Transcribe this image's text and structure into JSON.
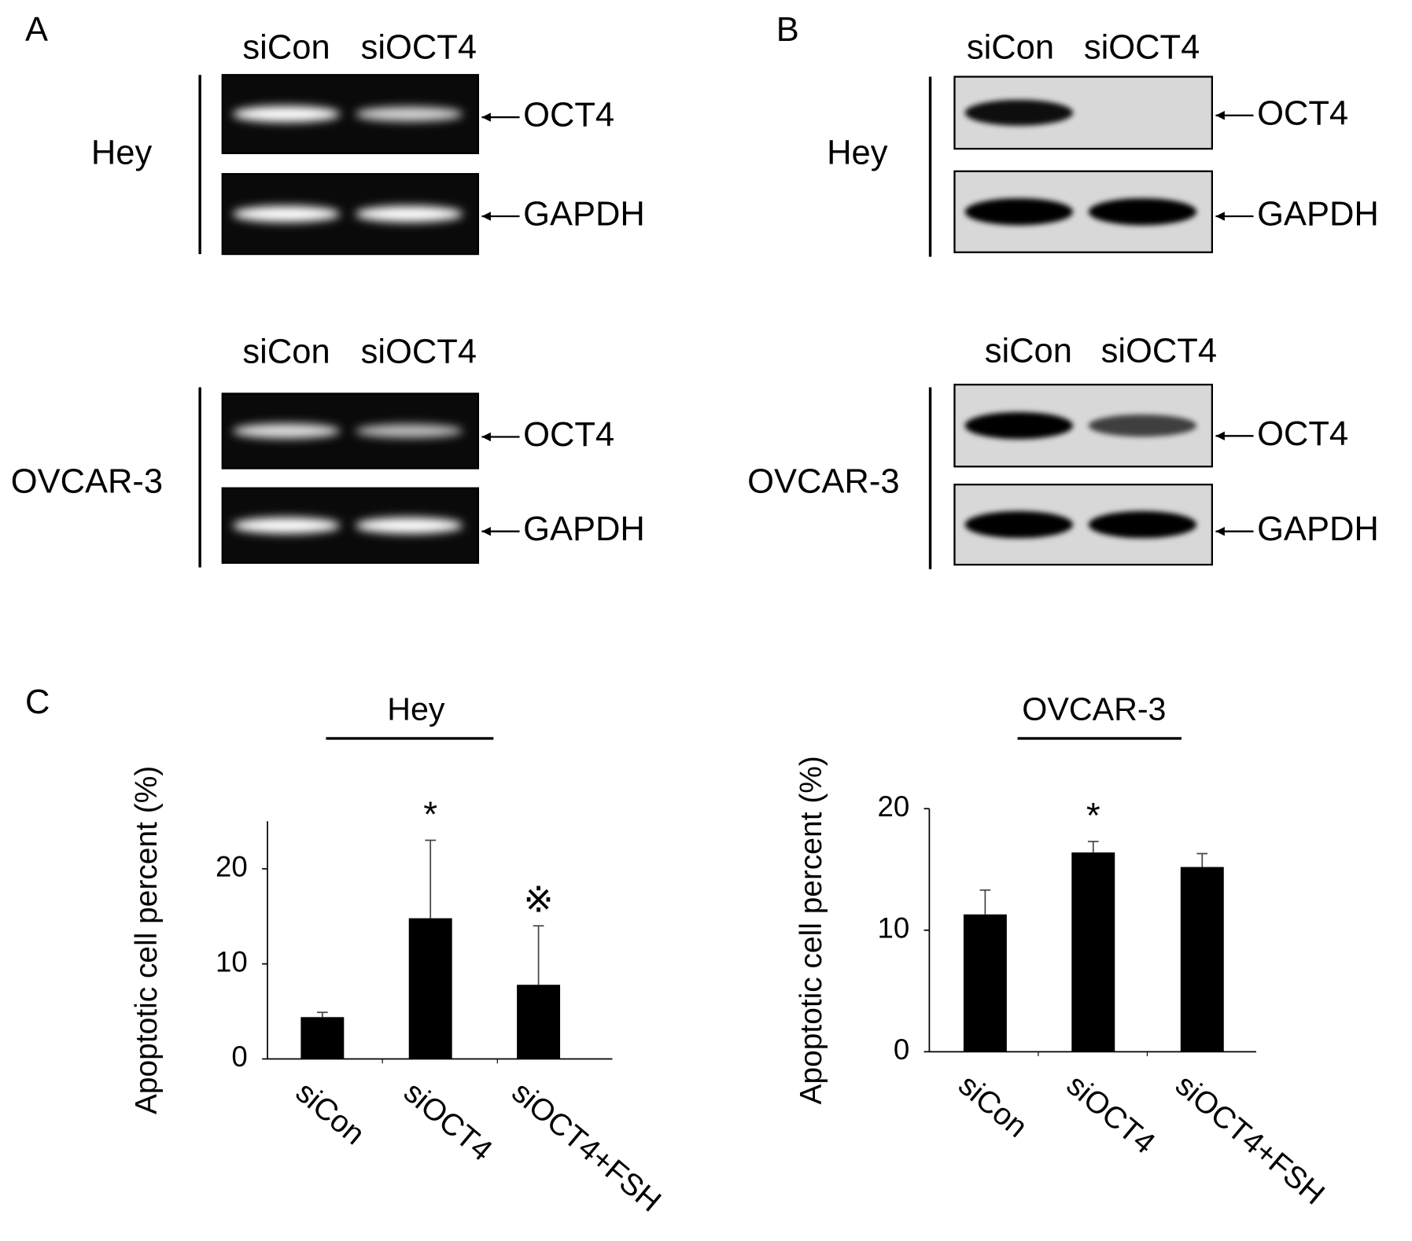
{
  "panels": [
    {
      "label": "A",
      "blots": [
        {
          "cell_line": "Hey",
          "lanes": [
            "siCon",
            "siOCT4"
          ],
          "bands": [
            "OCT4",
            "GAPDH"
          ]
        },
        {
          "cell_line": "OVCAR-3",
          "lanes": [
            "siCon",
            "siOCT4"
          ],
          "bands": [
            "OCT4",
            "GAPDH"
          ]
        }
      ]
    },
    {
      "label": "B",
      "blots": [
        {
          "cell_line": "Hey",
          "lanes": [
            "siCon",
            "siOCT4"
          ],
          "bands": [
            "OCT4",
            "GAPDH"
          ]
        },
        {
          "cell_line": "OVCAR-3",
          "lanes": [
            "siCon",
            "siOCT4"
          ],
          "bands": [
            "OCT4",
            "GAPDH"
          ]
        }
      ]
    },
    {
      "label": "C"
    }
  ],
  "chart_data": [
    {
      "type": "bar",
      "title": "Hey",
      "y_label": "Apoptotic cell percent (%)",
      "categories": [
        "siCon",
        "siOCT4",
        "siOCT4+FSH"
      ],
      "values": [
        4.4,
        14.8,
        7.8
      ],
      "errors": [
        0.5,
        8.2,
        6.2
      ],
      "markers": [
        null,
        "*",
        "※"
      ],
      "color": "#000000",
      "ylim": [
        0,
        25
      ],
      "yticks": [
        0,
        10,
        20
      ]
    },
    {
      "type": "bar",
      "title": "OVCAR-3",
      "y_label": "Apoptotic cell percent (%)",
      "categories": [
        "siCon",
        "siOCT4",
        "siOCT4+FSH"
      ],
      "values": [
        11.3,
        16.4,
        15.2
      ],
      "errors": [
        2.0,
        0.9,
        1.1
      ],
      "markers": [
        null,
        "*",
        null
      ],
      "color": "#000000",
      "ylim": [
        0,
        20
      ],
      "yticks": [
        0,
        10,
        20
      ]
    }
  ]
}
